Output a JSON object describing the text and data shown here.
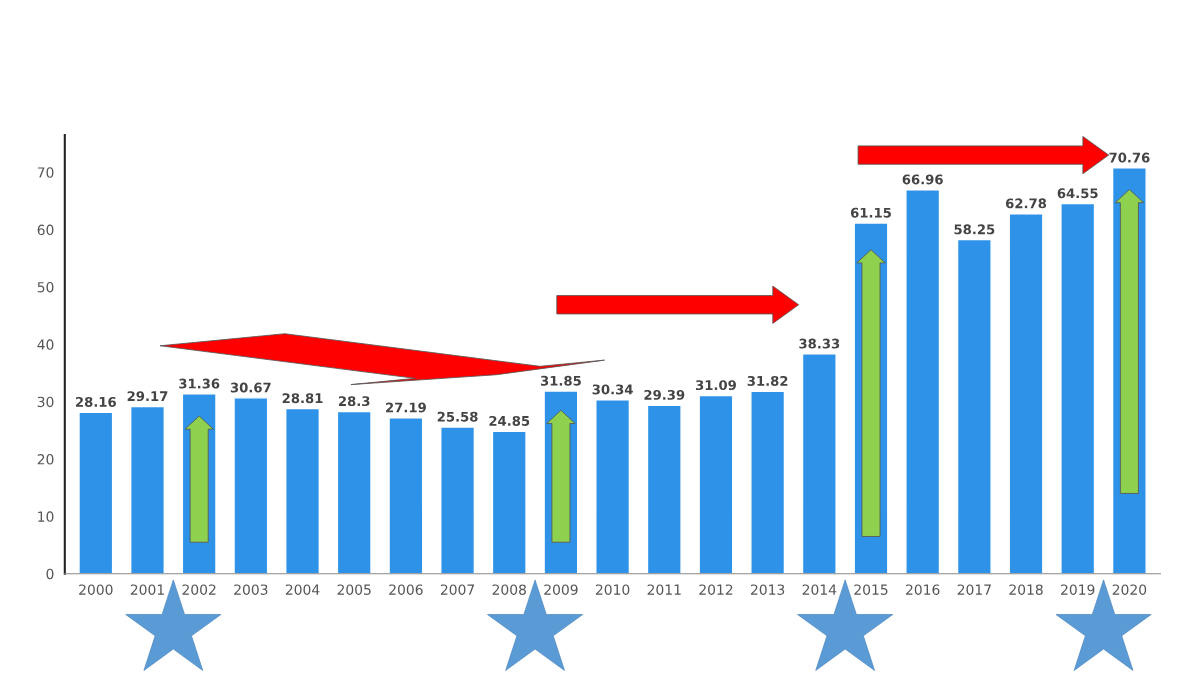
{
  "chart_data": {
    "type": "bar",
    "categories": [
      "2000",
      "2001",
      "2002",
      "2003",
      "2004",
      "2005",
      "2006",
      "2007",
      "2008",
      "2009",
      "2010",
      "2011",
      "2012",
      "2013",
      "2014",
      "2015",
      "2016",
      "2017",
      "2018",
      "2019",
      "2020"
    ],
    "values": [
      28.16,
      29.17,
      31.36,
      30.67,
      28.81,
      28.3,
      27.19,
      25.58,
      24.85,
      31.85,
      30.34,
      29.39,
      31.09,
      31.82,
      38.33,
      61.15,
      66.96,
      58.25,
      62.78,
      64.55,
      70.76
    ],
    "color": "#2e93e8",
    "ylim": [
      0,
      76.5
    ],
    "yticks": [
      0,
      10,
      20,
      30,
      40,
      50,
      60,
      70
    ],
    "data_labels": true,
    "grid": false
  }
}
